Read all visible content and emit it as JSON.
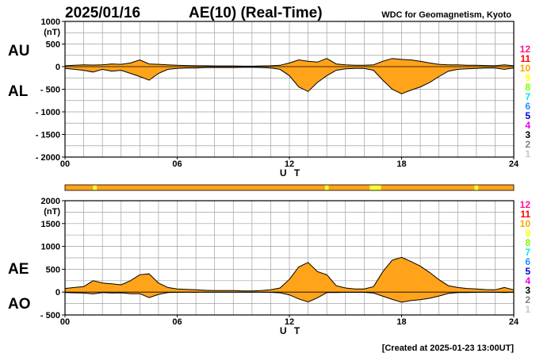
{
  "header": {
    "date": "2025/01/16",
    "title": "AE(10) (Real-Time)",
    "source": "WDC for Geomagnetism, Kyoto"
  },
  "footer": {
    "created": "[Created at 2025-01-23 13:00UT]"
  },
  "legend": {
    "items": [
      {
        "label": "12",
        "color": "#ff1493"
      },
      {
        "label": "11",
        "color": "#ff0000"
      },
      {
        "label": "10",
        "color": "#ffa500"
      },
      {
        "label": "9",
        "color": "#ffff00"
      },
      {
        "label": "8",
        "color": "#7cfc00"
      },
      {
        "label": "7",
        "color": "#00e5ee"
      },
      {
        "label": "6",
        "color": "#1e90ff"
      },
      {
        "label": "5",
        "color": "#0000cd"
      },
      {
        "label": "4",
        "color": "#ee00ee"
      },
      {
        "label": "3",
        "color": "#000000"
      },
      {
        "label": "2",
        "color": "#808080"
      },
      {
        "label": "1",
        "color": "#c8c8c8"
      }
    ]
  },
  "colors": {
    "fill": "#ffa31a",
    "station_low": "#ffff33",
    "grid": "#a0a0a0"
  },
  "station_bar": {
    "base_stations": 10,
    "yellow_intervals": [
      [
        1.5,
        1.7
      ],
      [
        13.9,
        14.1
      ],
      [
        16.3,
        16.9
      ],
      [
        21.9,
        22.1
      ]
    ]
  },
  "chart_data": [
    {
      "type": "area",
      "panel": "upper",
      "series": [
        {
          "name": "AU",
          "x": [
            0,
            0.5,
            1,
            1.5,
            2,
            2.5,
            3,
            3.5,
            4,
            4.5,
            5,
            5.5,
            6,
            6.5,
            7,
            7.5,
            8,
            8.5,
            9,
            9.5,
            10,
            10.5,
            11,
            11.5,
            12,
            12.5,
            13,
            13.5,
            14,
            14.5,
            15,
            15.5,
            16,
            16.5,
            17,
            17.5,
            18,
            18.5,
            19,
            19.5,
            20,
            20.5,
            21,
            21.5,
            22,
            22.5,
            23,
            23.5,
            24
          ],
          "values": [
            20,
            30,
            40,
            35,
            40,
            60,
            50,
            80,
            150,
            60,
            50,
            40,
            30,
            25,
            20,
            20,
            15,
            15,
            15,
            10,
            10,
            15,
            20,
            30,
            80,
            150,
            120,
            100,
            180,
            60,
            40,
            30,
            30,
            40,
            120,
            180,
            160,
            150,
            120,
            80,
            50,
            40,
            40,
            30,
            30,
            25,
            20,
            40,
            20
          ]
        },
        {
          "name": "AL",
          "x": [
            0,
            0.5,
            1,
            1.5,
            2,
            2.5,
            3,
            3.5,
            4,
            4.5,
            5,
            5.5,
            6,
            6.5,
            7,
            7.5,
            8,
            8.5,
            9,
            9.5,
            10,
            10.5,
            11,
            11.5,
            12,
            12.5,
            13,
            13.5,
            14,
            14.5,
            15,
            15.5,
            16,
            16.5,
            17,
            17.5,
            18,
            18.5,
            19,
            19.5,
            20,
            20.5,
            21,
            21.5,
            22,
            22.5,
            23,
            23.5,
            24
          ],
          "values": [
            -40,
            -60,
            -80,
            -120,
            -60,
            -100,
            -80,
            -150,
            -220,
            -300,
            -150,
            -60,
            -40,
            -30,
            -30,
            -20,
            -20,
            -20,
            -20,
            -15,
            -15,
            -20,
            -30,
            -60,
            -200,
            -450,
            -550,
            -350,
            -200,
            -80,
            -50,
            -40,
            -40,
            -80,
            -300,
            -500,
            -600,
            -520,
            -450,
            -350,
            -220,
            -100,
            -60,
            -50,
            -40,
            -30,
            -30,
            -60,
            -30
          ]
        }
      ],
      "ylim": [
        -2000,
        1000
      ],
      "yticks": [
        "1000",
        "500",
        "0",
        "- 500",
        "- 1000",
        "- 1500",
        "- 2000"
      ],
      "ytick_values": [
        1000,
        500,
        0,
        -500,
        -1000,
        -1500,
        -2000
      ],
      "xlim": [
        0,
        24
      ],
      "xticks": [
        "00",
        "06",
        "12",
        "18",
        "24"
      ],
      "xtick_values": [
        0,
        6,
        12,
        18,
        24
      ],
      "yunit": "(nT)",
      "xlabel": "U T",
      "upper_label": "AU",
      "lower_label": "AL"
    },
    {
      "type": "area",
      "panel": "lower",
      "series": [
        {
          "name": "AE",
          "x": [
            0,
            0.5,
            1,
            1.5,
            2,
            2.5,
            3,
            3.5,
            4,
            4.5,
            5,
            5.5,
            6,
            6.5,
            7,
            7.5,
            8,
            8.5,
            9,
            9.5,
            10,
            10.5,
            11,
            11.5,
            12,
            12.5,
            13,
            13.5,
            14,
            14.5,
            15,
            15.5,
            16,
            16.5,
            17,
            17.5,
            18,
            18.5,
            19,
            19.5,
            20,
            20.5,
            21,
            21.5,
            22,
            22.5,
            23,
            23.5,
            24
          ],
          "values": [
            80,
            100,
            120,
            250,
            200,
            180,
            160,
            250,
            380,
            400,
            200,
            100,
            70,
            60,
            50,
            40,
            35,
            35,
            35,
            25,
            25,
            35,
            50,
            90,
            280,
            550,
            650,
            450,
            380,
            140,
            90,
            70,
            70,
            120,
            450,
            700,
            760,
            670,
            570,
            430,
            270,
            140,
            100,
            80,
            70,
            55,
            50,
            100,
            50
          ]
        },
        {
          "name": "AO",
          "x": [
            0,
            0.5,
            1,
            1.5,
            2,
            2.5,
            3,
            3.5,
            4,
            4.5,
            5,
            5.5,
            6,
            6.5,
            7,
            7.5,
            8,
            8.5,
            9,
            9.5,
            10,
            10.5,
            11,
            11.5,
            12,
            12.5,
            13,
            13.5,
            14,
            14.5,
            15,
            15.5,
            16,
            16.5,
            17,
            17.5,
            18,
            18.5,
            19,
            19.5,
            20,
            20.5,
            21,
            21.5,
            22,
            22.5,
            23,
            23.5,
            24
          ],
          "values": [
            -10,
            -15,
            -20,
            -40,
            -10,
            -20,
            -15,
            -35,
            -35,
            -120,
            -50,
            -10,
            -5,
            -3,
            -5,
            0,
            -3,
            -3,
            -3,
            -3,
            -3,
            -3,
            -5,
            -15,
            -60,
            -150,
            -215,
            -125,
            -10,
            -10,
            -5,
            -5,
            -5,
            -20,
            -90,
            -160,
            -220,
            -185,
            -165,
            -135,
            -85,
            -30,
            -10,
            -10,
            -5,
            -3,
            -5,
            -10,
            -5
          ]
        }
      ],
      "ylim": [
        -500,
        2000
      ],
      "yticks": [
        "2000",
        "1500",
        "1000",
        "500",
        "0",
        "- 500"
      ],
      "ytick_values": [
        2000,
        1500,
        1000,
        500,
        0,
        -500
      ],
      "xlim": [
        0,
        24
      ],
      "xticks": [
        "00",
        "06",
        "12",
        "18",
        "24"
      ],
      "xtick_values": [
        0,
        6,
        12,
        18,
        24
      ],
      "yunit": "(nT)",
      "xlabel": "U T",
      "upper_label": "AE",
      "lower_label": "AO"
    }
  ]
}
